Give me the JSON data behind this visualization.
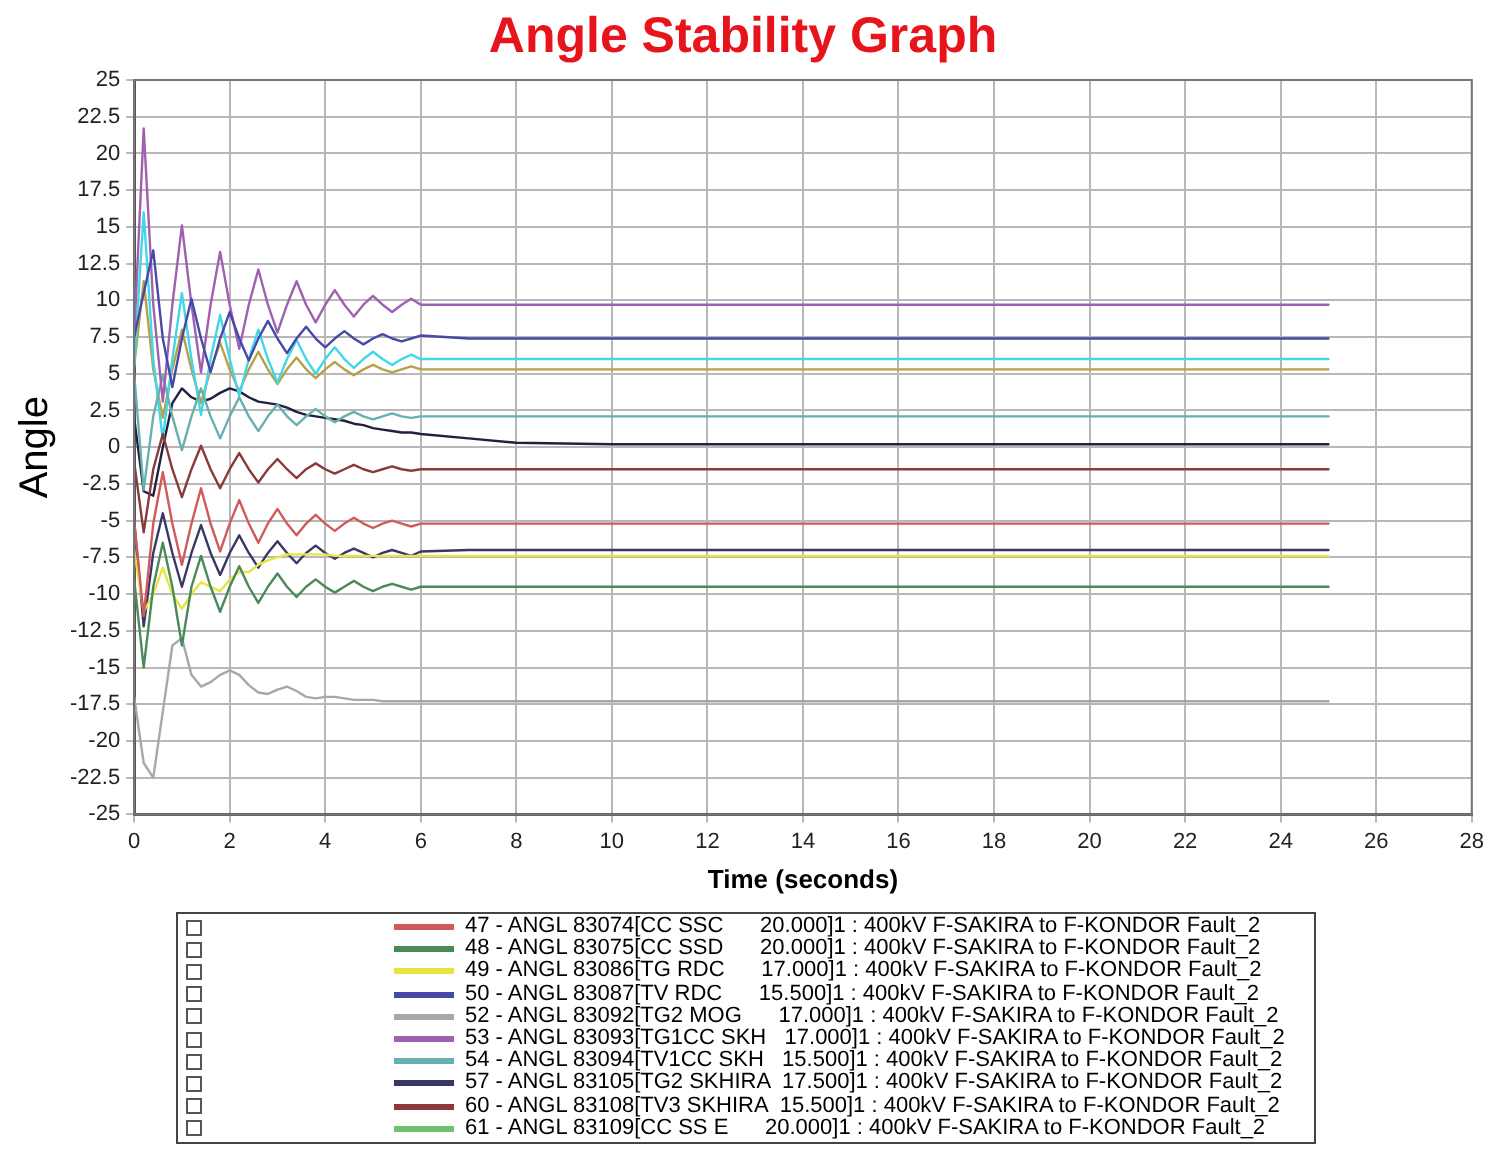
{
  "chart_data": {
    "type": "line",
    "title": "Angle Stability Graph",
    "xlabel": "Time (seconds)",
    "ylabel": "Angle",
    "xlim": [
      0,
      28
    ],
    "xticks": [
      0,
      2,
      4,
      6,
      8,
      10,
      12,
      14,
      16,
      18,
      20,
      22,
      24,
      26,
      28
    ],
    "ylim": [
      -25,
      25
    ],
    "yticks": [
      -25,
      -22.5,
      -20,
      -17.5,
      -15,
      -12.5,
      -10,
      -7.5,
      -5,
      -2.5,
      0,
      2.5,
      5,
      7.5,
      10,
      12.5,
      15,
      17.5,
      20,
      22.5,
      25
    ],
    "grid": true,
    "legend": "bottom",
    "marker": "none",
    "line_style": "solid",
    "x": [
      0,
      0.2,
      0.4,
      0.6,
      0.8,
      1,
      1.2,
      1.4,
      1.6,
      1.8,
      2,
      2.2,
      2.4,
      2.6,
      2.8,
      3,
      3.2,
      3.4,
      3.6,
      3.8,
      4,
      4.2,
      4.4,
      4.6,
      4.8,
      5,
      5.2,
      5.4,
      5.6,
      5.8,
      6,
      7,
      8,
      10,
      12,
      15,
      20,
      25
    ],
    "series": [
      {
        "name": "47 - ANGL 83074[CC SSC      20.000]1 : 400kV F-SAKIRA to F-KONDOR Fault_2",
        "color": "#d05a5a",
        "values": [
          -5,
          -11.5,
          -5.2,
          -1.7,
          -5.2,
          -8,
          -5.2,
          -2.8,
          -5.2,
          -7.1,
          -5.2,
          -3.6,
          -5.2,
          -6.5,
          -5.2,
          -4.2,
          -5.2,
          -6,
          -5.2,
          -4.6,
          -5.2,
          -5.7,
          -5.2,
          -4.8,
          -5.2,
          -5.5,
          -5.2,
          -5,
          -5.2,
          -5.4,
          -5.2,
          -5.2,
          -5.2,
          -5.2,
          -5.2,
          -5.2,
          -5.2,
          -5.2
        ]
      },
      {
        "name": "48 - ANGL 83075[CC SSD      20.000]1 : 400kV F-SAKIRA to F-KONDOR Fault_2",
        "color": "#4a8a5a",
        "values": [
          -9,
          -15,
          -9.5,
          -6.5,
          -9.5,
          -13.5,
          -9.5,
          -7.4,
          -9.5,
          -11.2,
          -9.5,
          -8.1,
          -9.5,
          -10.6,
          -9.5,
          -8.6,
          -9.5,
          -10.2,
          -9.5,
          -9,
          -9.5,
          -9.9,
          -9.5,
          -9.1,
          -9.5,
          -9.8,
          -9.5,
          -9.3,
          -9.5,
          -9.7,
          -9.5,
          -9.5,
          -9.5,
          -9.5,
          -9.5,
          -9.5,
          -9.5,
          -9.5
        ]
      },
      {
        "name": "49 - ANGL 83086[TG RDC      17.000]1 : 400kV F-SAKIRA to F-KONDOR Fault_2",
        "color": "#e6e640",
        "values": [
          -7,
          -11.2,
          -10,
          -8.2,
          -10,
          -11,
          -10,
          -9.2,
          -9.5,
          -9.8,
          -9,
          -8.5,
          -8.5,
          -8,
          -7.7,
          -7.5,
          -7.3,
          -7.3,
          -7.3,
          -7.3,
          -7.3,
          -7.4,
          -7.4,
          -7.4,
          -7.4,
          -7.4,
          -7.4,
          -7.4,
          -7.4,
          -7.4,
          -7.4,
          -7.4,
          -7.4,
          -7.4,
          -7.4,
          -7.4,
          -7.4,
          -7.4
        ]
      },
      {
        "name": "50 - ANGL 83087[TV RDC      15.500]1 : 400kV F-SAKIRA to F-KONDOR Fault_2",
        "color": "#4848a8",
        "values": [
          7.5,
          10.5,
          13.4,
          7.4,
          4.1,
          7.4,
          10.1,
          7.4,
          5.1,
          7.4,
          9.2,
          7.4,
          5.9,
          7.4,
          8.6,
          7.4,
          6.4,
          7.4,
          8.2,
          7.4,
          6.8,
          7.4,
          7.9,
          7.4,
          7,
          7.4,
          7.7,
          7.4,
          7.2,
          7.4,
          7.6,
          7.4,
          7.4,
          7.4,
          7.4,
          7.4,
          7.4,
          7.4
        ]
      },
      {
        "name": "52 - ANGL 83092[TG2 MOG      17.000]1 : 400kV F-SAKIRA to F-KONDOR Fault_2",
        "color": "#a8a8a8",
        "values": [
          -17,
          -21.5,
          -22.5,
          -18,
          -13.5,
          -13,
          -15.5,
          -16.3,
          -16,
          -15.5,
          -15.2,
          -15.5,
          -16.2,
          -16.7,
          -16.8,
          -16.5,
          -16.3,
          -16.6,
          -17,
          -17.1,
          -17,
          -17,
          -17.1,
          -17.2,
          -17.2,
          -17.2,
          -17.3,
          -17.3,
          -17.3,
          -17.3,
          -17.3,
          -17.3,
          -17.3,
          -17.3,
          -17.3,
          -17.3,
          -17.3,
          -17.3
        ]
      },
      {
        "name": "53 - ANGL 83093[TG1CC SKH   17.000]1 : 400kV F-SAKIRA to F-KONDOR Fault_2",
        "color": "#a060b0",
        "values": [
          7.5,
          21.7,
          9.7,
          3.1,
          9.7,
          15.1,
          9.7,
          5.1,
          9.7,
          13.3,
          9.7,
          6.7,
          9.7,
          12.1,
          9.7,
          7.8,
          9.7,
          11.3,
          9.7,
          8.5,
          9.7,
          10.7,
          9.7,
          8.9,
          9.7,
          10.3,
          9.7,
          9.2,
          9.7,
          10.1,
          9.7,
          9.7,
          9.7,
          9.7,
          9.7,
          9.7,
          9.7,
          9.7
        ]
      },
      {
        "name": "54 - ANGL 83094[TV1CC SKH   15.500]1 : 400kV F-SAKIRA to F-KONDOR Fault_2",
        "color": "#68b0b0",
        "values": [
          5,
          -2.9,
          2.1,
          4.9,
          2.1,
          -0.2,
          2.1,
          4,
          2.1,
          0.6,
          2.1,
          3.4,
          2.1,
          1.1,
          2.1,
          2.9,
          2.1,
          1.5,
          2.1,
          2.6,
          2.1,
          1.7,
          2.1,
          2.4,
          2.1,
          1.9,
          2.1,
          2.3,
          2.1,
          2,
          2.1,
          2.1,
          2.1,
          2.1,
          2.1,
          2.1,
          2.1,
          2.1
        ]
      },
      {
        "name": "57 - ANGL 83105[TG2 SKHIRA  17.500]1 : 400kV F-SAKIRA to F-KONDOR Fault_2",
        "color": "#383868",
        "values": [
          -5,
          -12.2,
          -7.2,
          -4.5,
          -7.2,
          -9.5,
          -7.2,
          -5.3,
          -7.2,
          -8.7,
          -7.2,
          -6,
          -7.2,
          -8.2,
          -7.2,
          -6.4,
          -7.2,
          -7.9,
          -7.2,
          -6.7,
          -7.2,
          -7.6,
          -7.2,
          -6.9,
          -7.2,
          -7.5,
          -7.2,
          -7,
          -7.2,
          -7.4,
          -7.1,
          -7,
          -7,
          -7,
          -7,
          -7,
          -7,
          -7
        ]
      },
      {
        "name": "60 - ANGL 83108[TV3 SKHIRA  15.500]1 : 400kV F-SAKIRA to F-KONDOR Fault_2",
        "color": "#8b3a3a",
        "values": [
          -1,
          -5.8,
          -1.5,
          0.9,
          -1.5,
          -3.4,
          -1.5,
          0.1,
          -1.5,
          -2.8,
          -1.5,
          -0.4,
          -1.5,
          -2.4,
          -1.5,
          -0.8,
          -1.5,
          -2.1,
          -1.5,
          -1.1,
          -1.5,
          -1.8,
          -1.5,
          -1.2,
          -1.5,
          -1.7,
          -1.5,
          -1.3,
          -1.5,
          -1.6,
          -1.5,
          -1.5,
          -1.5,
          -1.5,
          -1.5,
          -1.5,
          -1.5,
          -1.5
        ]
      },
      {
        "name": "61 - ANGL 83109[CC SS E      20.000]1 : 400kV F-SAKIRA to F-KONDOR Fault_2",
        "color": "#70c070",
        "values": [
          null,
          null,
          null,
          null,
          null,
          null,
          null,
          null,
          null,
          null,
          null,
          null,
          null,
          null,
          null,
          null,
          null,
          null,
          null,
          null,
          null,
          null,
          null,
          null,
          null,
          null,
          null,
          null,
          null,
          null,
          null,
          null,
          null,
          null,
          null,
          null,
          null,
          null
        ]
      },
      {
        "color": "#40d8e8",
        "values": [
          5.5,
          16,
          6,
          0.5,
          6,
          10.5,
          6,
          2.2,
          6,
          9,
          6,
          3.5,
          6,
          8,
          6,
          4.4,
          6,
          7.3,
          6,
          5,
          6,
          6.8,
          6,
          5.4,
          6,
          6.5,
          6,
          5.6,
          6,
          6.3,
          6,
          6,
          6,
          6,
          6,
          6,
          6,
          6
        ]
      },
      {
        "color": "#b8a048",
        "values": [
          5.5,
          11.3,
          5.3,
          2,
          5.3,
          8,
          5.3,
          3,
          5.3,
          7.1,
          5.3,
          3.8,
          5.3,
          6.5,
          5.3,
          4.3,
          5.3,
          6.1,
          5.3,
          4.7,
          5.3,
          5.8,
          5.3,
          4.9,
          5.3,
          5.6,
          5.3,
          5.1,
          5.3,
          5.5,
          5.3,
          5.3,
          5.3,
          5.3,
          5.3,
          5.3,
          5.3,
          5.3
        ]
      },
      {
        "color": "#202040",
        "values": [
          2,
          -3,
          -3.3,
          0,
          3,
          4,
          3.4,
          3.1,
          3.3,
          3.7,
          4,
          3.8,
          3.4,
          3.1,
          3,
          2.9,
          2.7,
          2.4,
          2.2,
          2.1,
          2,
          1.9,
          1.8,
          1.6,
          1.5,
          1.3,
          1.2,
          1.1,
          1,
          1,
          0.9,
          0.6,
          0.3,
          0.2,
          0.2,
          0.2,
          0.2,
          0.2
        ]
      }
    ]
  }
}
